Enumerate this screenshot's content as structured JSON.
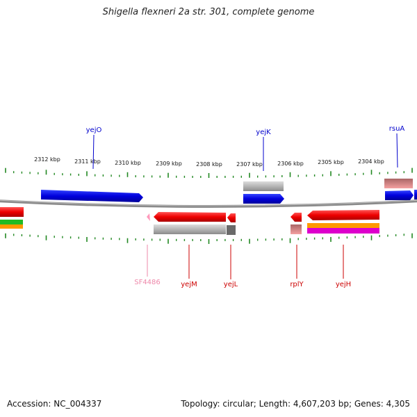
{
  "title": "Shigella flexneri 2a str. 301, complete genome",
  "footer": {
    "accession": "Accession: NC_004337",
    "summary": "Topology: circular; Length: 4,607,203 bp; Genes: 4,305"
  },
  "axis": {
    "unit": "kbp",
    "ticks": [
      "2312 kbp",
      "2311 kbp",
      "2310 kbp",
      "2309 kbp",
      "2308 kbp",
      "2307 kbp",
      "2306 kbp",
      "2305 kbp",
      "2304 kbp"
    ]
  },
  "genes": {
    "top": [
      {
        "label": "yejO",
        "color": "#0000cc"
      },
      {
        "label": "yejK",
        "color": "#0000cc"
      },
      {
        "label": "rsuA",
        "color": "#0000cc"
      }
    ],
    "bottom": [
      {
        "label": "SF4486",
        "color": "#ee88aa"
      },
      {
        "label": "yejM",
        "color": "#cc0000"
      },
      {
        "label": "yejL",
        "color": "#cc0000"
      },
      {
        "label": "rplY",
        "color": "#cc0000"
      },
      {
        "label": "yejH",
        "color": "#cc0000"
      }
    ]
  },
  "colors": {
    "forward": "#0000ee",
    "reverse": "#ee0000",
    "backbone": "#888888",
    "ticks": "#228822",
    "grey_feature": "#b8b8b8"
  }
}
